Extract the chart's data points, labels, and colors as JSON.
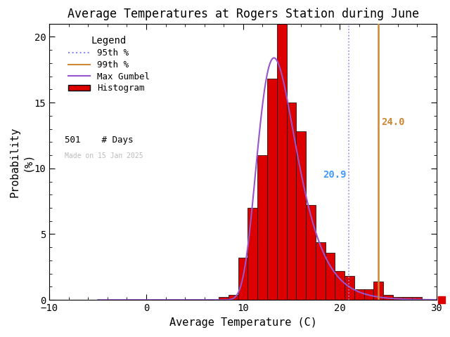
{
  "title": "Average Temperatures at Rogers Station during June",
  "xlabel": "Average Temperature (C)",
  "ylabel": "Probability\n(%)",
  "xlim": [
    -10,
    30
  ],
  "ylim": [
    0,
    21
  ],
  "yticks": [
    0,
    5,
    10,
    15,
    20
  ],
  "xticks": [
    -10,
    0,
    10,
    20,
    30
  ],
  "n_days": 501,
  "percentile_95": 20.9,
  "percentile_99": 24.0,
  "percentile_95_color": "#8888FF",
  "percentile_95_label_color": "#4499FF",
  "percentile_99_color": "#CC8833",
  "hist_color": "#DD0000",
  "hist_edge_color": "#000000",
  "gumbel_color": "#9955CC",
  "bin_centers": [
    8,
    9,
    10,
    11,
    12,
    13,
    14,
    15,
    16,
    17,
    18,
    19,
    20,
    21,
    22,
    23,
    24,
    25,
    26,
    27,
    28,
    29
  ],
  "bin_probs": [
    0.2,
    0.4,
    3.2,
    7.0,
    11.0,
    16.8,
    21.0,
    15.0,
    12.8,
    7.2,
    4.4,
    3.6,
    2.2,
    1.8,
    0.8,
    0.8,
    1.4,
    0.4,
    0.2,
    0.2,
    0.2,
    0.0
  ],
  "bin_width": 1,
  "gumbel_mu": 13.2,
  "gumbel_beta": 2.0,
  "legend_title": "Legend",
  "watermark": "Made on 15 Jan 2025",
  "background_color": "#FFFFFF"
}
